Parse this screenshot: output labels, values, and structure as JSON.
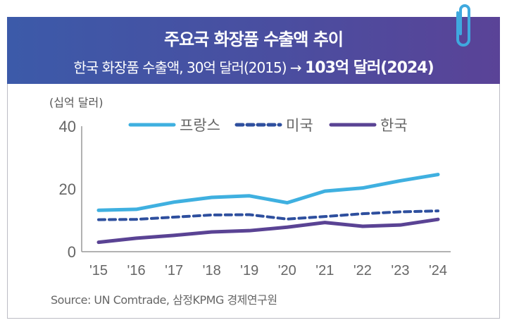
{
  "header": {
    "title": "주요국 화장품 수출액  추이",
    "subtitle_prefix": "한국 화장품 수출액, 30억 달러(2015) → ",
    "subtitle_emphasis": "103억 달러(2024)"
  },
  "colors": {
    "banner_start": "#3c5aa9",
    "banner_end": "#5a4397",
    "france": "#3fb0e0",
    "usa": "#2e4f9e",
    "korea": "#5a4394",
    "paperclip": "#3fa9df"
  },
  "icons": {
    "decoration": "paperclip-icon"
  },
  "chart_data": {
    "type": "line",
    "ylabel": "(십억 달러)",
    "ylim": [
      0,
      40
    ],
    "yticks": [
      "0",
      "20",
      "40"
    ],
    "categories": [
      "'15",
      "'16",
      "'17",
      "'18",
      "'19",
      "'20",
      "'21",
      "'22",
      "'23",
      "'24"
    ],
    "legend_position": "top",
    "grid": false,
    "series": [
      {
        "name": "프랑스",
        "style": "solid",
        "color": "#3fb0e0",
        "values": [
          13.2,
          13.5,
          15.8,
          17.3,
          17.8,
          15.6,
          19.3,
          20.3,
          22.6,
          24.6
        ]
      },
      {
        "name": "미국",
        "style": "dashed",
        "color": "#2e4f9e",
        "values": [
          10.2,
          10.3,
          11.0,
          11.7,
          11.8,
          10.4,
          11.2,
          12.1,
          12.7,
          13.0
        ]
      },
      {
        "name": "한국",
        "style": "solid",
        "color": "#5a4394",
        "values": [
          3.0,
          4.3,
          5.2,
          6.3,
          6.7,
          7.8,
          9.3,
          8.1,
          8.5,
          10.3
        ]
      }
    ]
  },
  "source": "Source: UN Comtrade, 삼정KPMG 경제연구원"
}
